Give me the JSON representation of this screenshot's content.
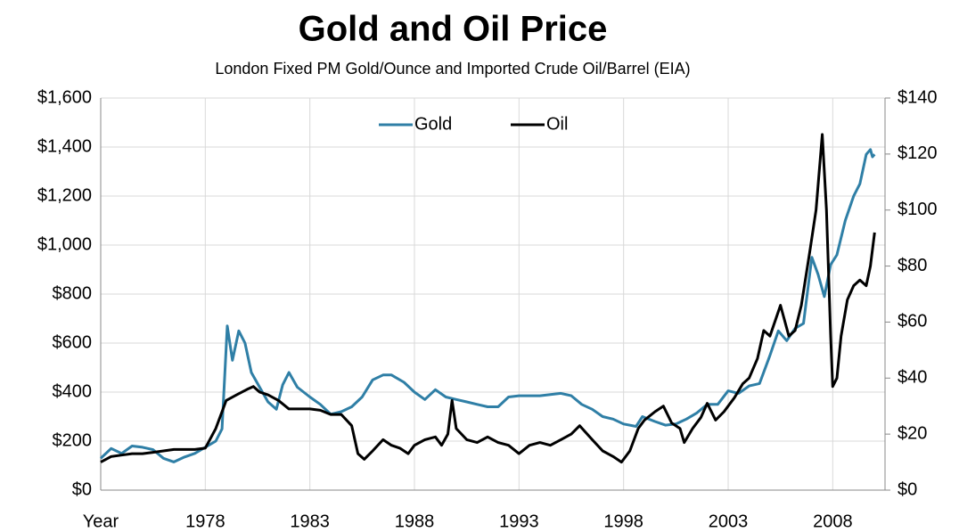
{
  "chart_data": {
    "type": "line",
    "title": "Gold and Oil Price",
    "subtitle": "London Fixed PM Gold/Ounce and Imported Crude Oil/Barrel (EIA)",
    "xlim": [
      1973,
      2010.5
    ],
    "xticks": [
      {
        "value": 1973,
        "label": "Year"
      },
      1978,
      1983,
      1988,
      1993,
      1998,
      2003,
      2008
    ],
    "ylim": [
      0,
      1600
    ],
    "yticks": [
      {
        "value": 0,
        "label": "$0"
      },
      {
        "value": 200,
        "label": "$200"
      },
      {
        "value": 400,
        "label": "$400"
      },
      {
        "value": 600,
        "label": "$600"
      },
      {
        "value": 800,
        "label": "$800"
      },
      {
        "value": 1000,
        "label": "$1,000"
      },
      {
        "value": 1200,
        "label": "$1,200"
      },
      {
        "value": 1400,
        "label": "$1,400"
      },
      {
        "value": 1600,
        "label": "$1,600"
      }
    ],
    "y2lim": [
      0,
      140
    ],
    "y2ticks": [
      {
        "value": 0,
        "label": "$0"
      },
      {
        "value": 20,
        "label": "$20"
      },
      {
        "value": 40,
        "label": "$40"
      },
      {
        "value": 60,
        "label": "$60"
      },
      {
        "value": 80,
        "label": "$80"
      },
      {
        "value": 100,
        "label": "$100"
      },
      {
        "value": 120,
        "label": "$120"
      },
      {
        "value": 140,
        "label": "$140"
      }
    ],
    "grid": true,
    "legend": "upper center",
    "series": [
      {
        "name": "Gold",
        "color": "#2f7fa6",
        "x": [
          1973.0,
          1973.5,
          1974.0,
          1974.5,
          1975.0,
          1975.5,
          1976.0,
          1976.5,
          1977.0,
          1977.5,
          1978.0,
          1978.5,
          1978.8,
          1979.05,
          1979.3,
          1979.6,
          1979.9,
          1980.2,
          1980.6,
          1981.0,
          1981.4,
          1981.7,
          1982.0,
          1982.4,
          1983.0,
          1983.5,
          1984.0,
          1984.5,
          1985.0,
          1985.5,
          1986.0,
          1986.5,
          1986.9,
          1987.5,
          1988.0,
          1988.5,
          1989.0,
          1989.5,
          1990.0,
          1990.5,
          1991.0,
          1991.5,
          1992.0,
          1992.5,
          1993.0,
          1993.5,
          1994.0,
          1994.5,
          1995.0,
          1995.5,
          1996.0,
          1996.5,
          1997.0,
          1997.5,
          1998.0,
          1998.6,
          1998.9,
          1999.5,
          2000.0,
          2000.5,
          2001.0,
          2001.5,
          2002.0,
          2002.5,
          2003.0,
          2003.5,
          2004.0,
          2004.5,
          2005.0,
          2005.4,
          2005.8,
          2006.2,
          2006.6,
          2007.0,
          2007.3,
          2007.6,
          2007.9,
          2008.2,
          2008.6,
          2009.0,
          2009.3,
          2009.6,
          2009.8,
          2009.9,
          2010.0
        ],
        "values": [
          130,
          170,
          150,
          180,
          175,
          165,
          130,
          115,
          135,
          150,
          175,
          200,
          250,
          670,
          530,
          650,
          600,
          480,
          420,
          360,
          330,
          430,
          480,
          420,
          380,
          350,
          310,
          320,
          340,
          380,
          450,
          470,
          470,
          440,
          400,
          370,
          410,
          380,
          370,
          360,
          350,
          340,
          340,
          380,
          385,
          385,
          385,
          390,
          395,
          385,
          350,
          330,
          300,
          290,
          270,
          260,
          300,
          280,
          265,
          270,
          290,
          315,
          350,
          350,
          405,
          395,
          425,
          435,
          550,
          650,
          610,
          660,
          680,
          950,
          880,
          790,
          920,
          960,
          1100,
          1200,
          1250,
          1370,
          1390,
          1360,
          1370
        ]
      },
      {
        "name": "Oil",
        "color": "#000000",
        "axis": "y2",
        "x": [
          1973.0,
          1973.5,
          1974.0,
          1974.5,
          1975.0,
          1975.5,
          1976.0,
          1976.5,
          1977.0,
          1977.5,
          1978.0,
          1978.5,
          1979.0,
          1979.5,
          1980.0,
          1980.3,
          1980.6,
          1981.0,
          1981.5,
          1982.0,
          1982.5,
          1983.0,
          1983.5,
          1984.0,
          1984.5,
          1985.0,
          1985.3,
          1985.6,
          1986.0,
          1986.5,
          1986.9,
          1987.3,
          1987.7,
          1988.0,
          1988.5,
          1989.0,
          1989.3,
          1989.6,
          1989.8,
          1990.0,
          1990.5,
          1991.0,
          1991.5,
          1992.0,
          1992.5,
          1993.0,
          1993.5,
          1994.0,
          1994.5,
          1995.0,
          1995.5,
          1995.9,
          1996.5,
          1997.0,
          1997.5,
          1997.9,
          1998.3,
          1998.7,
          1999.0,
          1999.5,
          1999.9,
          2000.3,
          2000.7,
          2000.9,
          2001.3,
          2001.7,
          2002.0,
          2002.4,
          2002.8,
          2003.3,
          2003.7,
          2004.0,
          2004.4,
          2004.7,
          2005.0,
          2005.5,
          2005.9,
          2006.2,
          2006.5,
          2006.9,
          2007.2,
          2007.5,
          2007.7,
          2007.9,
          2008.0,
          2008.2,
          2008.4,
          2008.7,
          2009.0,
          2009.3,
          2009.6,
          2009.8,
          2010.0
        ],
        "values": [
          10,
          12,
          12.5,
          13,
          13,
          13.5,
          14,
          14.5,
          14.5,
          14.5,
          15,
          22,
          32,
          34,
          36,
          37,
          35,
          34,
          32,
          29,
          29,
          29,
          28.5,
          27,
          27,
          23,
          13,
          11,
          14,
          18,
          16,
          15,
          13,
          16,
          18,
          19,
          16,
          20,
          32,
          22,
          18,
          17,
          19,
          17,
          16,
          13,
          16,
          17,
          16,
          18,
          20,
          23,
          18,
          14,
          12,
          10,
          14,
          22,
          25,
          28,
          30,
          24,
          22,
          17,
          22,
          26,
          31,
          25,
          28,
          33,
          38,
          40,
          47,
          57,
          55,
          66,
          55,
          57,
          66,
          85,
          100,
          127,
          100,
          55,
          37,
          40,
          55,
          68,
          73,
          75,
          73,
          80,
          92
        ]
      }
    ]
  }
}
